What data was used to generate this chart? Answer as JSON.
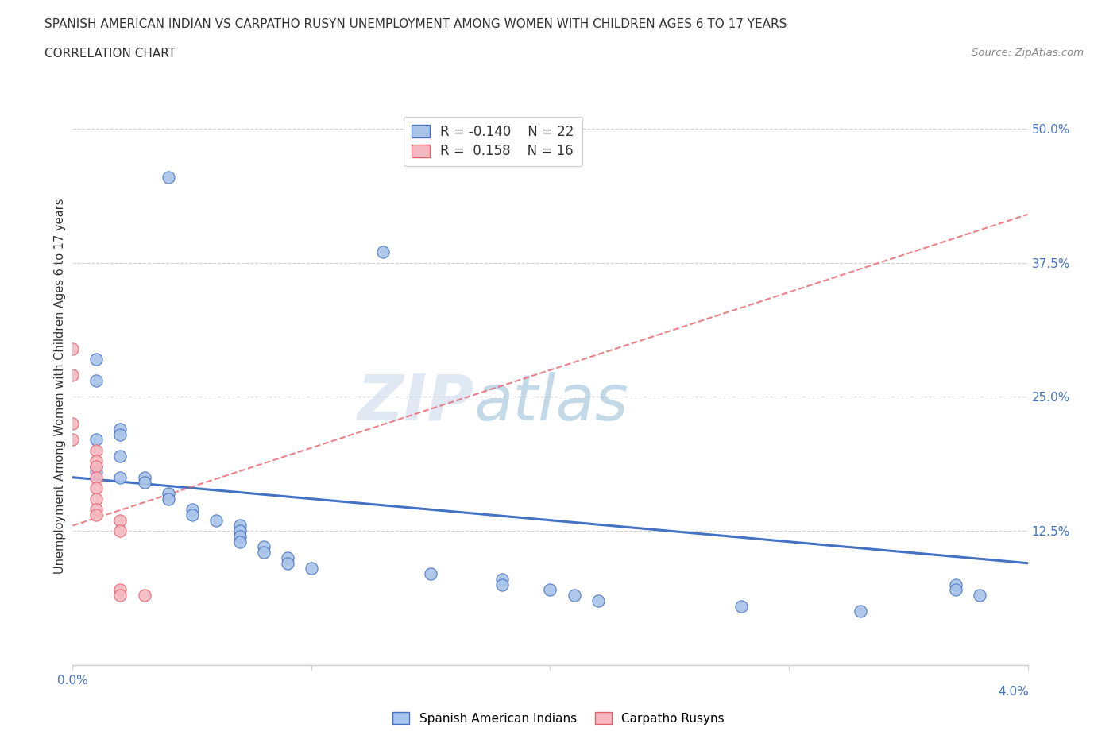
{
  "title_line1": "SPANISH AMERICAN INDIAN VS CARPATHO RUSYN UNEMPLOYMENT AMONG WOMEN WITH CHILDREN AGES 6 TO 17 YEARS",
  "title_line2": "CORRELATION CHART",
  "source_text": "Source: ZipAtlas.com",
  "ylabel": "Unemployment Among Women with Children Ages 6 to 17 years",
  "xlim": [
    0.0,
    0.04
  ],
  "ylim": [
    0.0,
    0.52
  ],
  "ytick_labels": [
    "12.5%",
    "25.0%",
    "37.5%",
    "50.0%"
  ],
  "ytick_values": [
    0.125,
    0.25,
    0.375,
    0.5
  ],
  "watermark": "ZIPAtlas",
  "blue_color": "#a8c4e8",
  "pink_color": "#f5b8c0",
  "blue_line_color": "#4472c4",
  "pink_line_color": "#e8626e",
  "blue_scatter": [
    [
      0.004,
      0.455
    ],
    [
      0.013,
      0.385
    ],
    [
      0.001,
      0.285
    ],
    [
      0.001,
      0.265
    ],
    [
      0.002,
      0.22
    ],
    [
      0.002,
      0.215
    ],
    [
      0.001,
      0.21
    ],
    [
      0.002,
      0.195
    ],
    [
      0.001,
      0.185
    ],
    [
      0.001,
      0.18
    ],
    [
      0.002,
      0.175
    ],
    [
      0.003,
      0.175
    ],
    [
      0.003,
      0.17
    ],
    [
      0.004,
      0.16
    ],
    [
      0.004,
      0.155
    ],
    [
      0.005,
      0.145
    ],
    [
      0.005,
      0.14
    ],
    [
      0.006,
      0.135
    ],
    [
      0.007,
      0.13
    ],
    [
      0.007,
      0.125
    ],
    [
      0.007,
      0.12
    ],
    [
      0.007,
      0.115
    ],
    [
      0.008,
      0.11
    ],
    [
      0.008,
      0.105
    ],
    [
      0.009,
      0.1
    ],
    [
      0.009,
      0.095
    ],
    [
      0.01,
      0.09
    ],
    [
      0.015,
      0.085
    ],
    [
      0.018,
      0.08
    ],
    [
      0.018,
      0.075
    ],
    [
      0.02,
      0.07
    ],
    [
      0.021,
      0.065
    ],
    [
      0.022,
      0.06
    ],
    [
      0.028,
      0.055
    ],
    [
      0.033,
      0.05
    ],
    [
      0.037,
      0.075
    ],
    [
      0.037,
      0.07
    ],
    [
      0.038,
      0.065
    ]
  ],
  "pink_scatter": [
    [
      0.0,
      0.295
    ],
    [
      0.0,
      0.27
    ],
    [
      0.0,
      0.225
    ],
    [
      0.0,
      0.21
    ],
    [
      0.001,
      0.2
    ],
    [
      0.001,
      0.19
    ],
    [
      0.001,
      0.185
    ],
    [
      0.001,
      0.175
    ],
    [
      0.001,
      0.165
    ],
    [
      0.001,
      0.155
    ],
    [
      0.001,
      0.145
    ],
    [
      0.001,
      0.14
    ],
    [
      0.002,
      0.135
    ],
    [
      0.002,
      0.125
    ],
    [
      0.002,
      0.07
    ],
    [
      0.002,
      0.065
    ],
    [
      0.003,
      0.065
    ]
  ],
  "blue_trend_x": [
    0.0,
    0.04
  ],
  "blue_trend_y": [
    0.175,
    0.095
  ],
  "pink_trend_x": [
    0.0,
    0.04
  ],
  "pink_trend_y": [
    0.13,
    0.42
  ]
}
